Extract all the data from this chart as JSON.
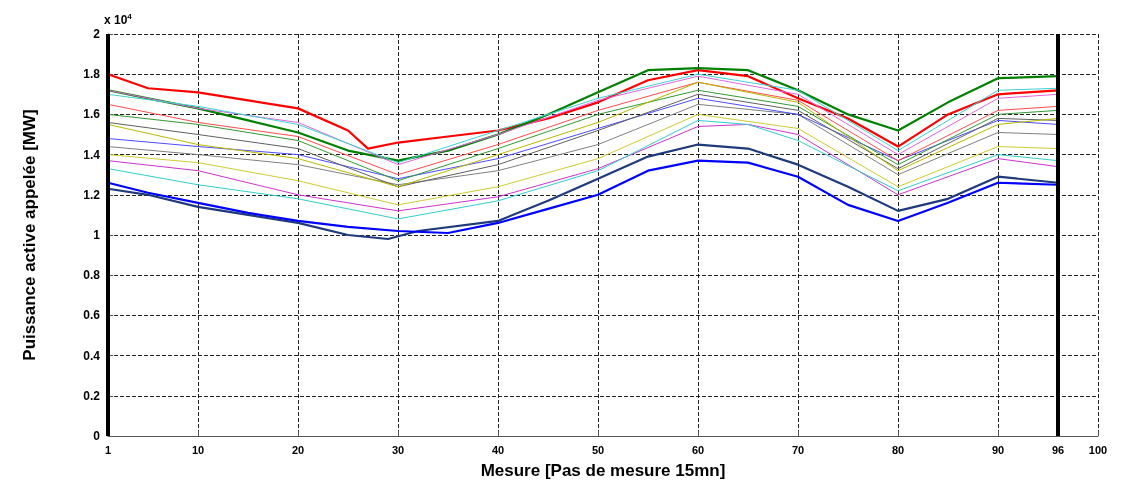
{
  "chart_data": {
    "type": "line",
    "xlabel": "Mesure [Pas de mesure 15mn]",
    "ylabel": "Puissance active appelée [MW]",
    "annotations": [
      "x 10$^{4}$"
    ],
    "xlim": [
      1,
      100
    ],
    "xticks": [
      1,
      10,
      20,
      30,
      40,
      50,
      60,
      70,
      80,
      90,
      96,
      100
    ],
    "ylim": [
      0,
      2
    ],
    "yticks": [
      0,
      0.2,
      0.4,
      0.6,
      0.8,
      1,
      1.2,
      1.4,
      1.6,
      1.8,
      2
    ],
    "grid": true,
    "line_style": "solid",
    "marker": "none",
    "ref_lines": [
      {
        "axis": "x",
        "value": 1,
        "color": "#000000"
      },
      {
        "axis": "x",
        "value": 96,
        "color": "#000000"
      }
    ],
    "series": [
      {
        "color": "#ff0000",
        "x": [
          1,
          5,
          10,
          15,
          20,
          25,
          27,
          30,
          35,
          40,
          45,
          50,
          55,
          60,
          65,
          70,
          75,
          80,
          85,
          90,
          96
        ],
        "values": [
          1.8,
          1.73,
          1.71,
          1.67,
          1.63,
          1.52,
          1.43,
          1.46,
          1.49,
          1.52,
          1.58,
          1.66,
          1.77,
          1.82,
          1.79,
          1.68,
          1.58,
          1.44,
          1.6,
          1.7,
          1.72
        ]
      },
      {
        "color": "#008000",
        "x": [
          1,
          5,
          10,
          15,
          20,
          25,
          30,
          35,
          40,
          45,
          50,
          55,
          60,
          65,
          70,
          75,
          80,
          85,
          90,
          96
        ],
        "values": [
          1.72,
          1.68,
          1.63,
          1.57,
          1.51,
          1.42,
          1.37,
          1.42,
          1.5,
          1.6,
          1.71,
          1.82,
          1.83,
          1.82,
          1.72,
          1.6,
          1.52,
          1.66,
          1.78,
          1.79
        ]
      },
      {
        "color": "#1f3a7a",
        "x": [
          1,
          5,
          10,
          15,
          20,
          25,
          29,
          32,
          40,
          45,
          50,
          55,
          60,
          65,
          70,
          75,
          80,
          85,
          90,
          96
        ],
        "values": [
          1.23,
          1.2,
          1.14,
          1.1,
          1.06,
          1.0,
          0.98,
          1.02,
          1.07,
          1.17,
          1.28,
          1.39,
          1.45,
          1.43,
          1.35,
          1.24,
          1.12,
          1.18,
          1.29,
          1.26
        ]
      },
      {
        "color": "#0000ff",
        "x": [
          1,
          5,
          10,
          15,
          20,
          25,
          30,
          35,
          40,
          45,
          50,
          55,
          60,
          65,
          70,
          75,
          80,
          85,
          90,
          96
        ],
        "values": [
          1.26,
          1.21,
          1.16,
          1.11,
          1.07,
          1.04,
          1.02,
          1.01,
          1.06,
          1.13,
          1.2,
          1.32,
          1.37,
          1.36,
          1.29,
          1.15,
          1.07,
          1.16,
          1.26,
          1.25
        ]
      },
      {
        "color": "#cc33cc",
        "x": [
          1,
          10,
          20,
          30,
          40,
          50,
          60,
          65,
          70,
          80,
          90,
          96
        ],
        "values": [
          1.37,
          1.32,
          1.2,
          1.12,
          1.19,
          1.33,
          1.54,
          1.55,
          1.5,
          1.2,
          1.38,
          1.34
        ]
      },
      {
        "color": "#33cccc",
        "x": [
          1,
          10,
          20,
          30,
          40,
          50,
          60,
          65,
          70,
          80,
          90,
          96
        ],
        "values": [
          1.33,
          1.25,
          1.18,
          1.08,
          1.17,
          1.32,
          1.57,
          1.55,
          1.47,
          1.22,
          1.4,
          1.37
        ]
      },
      {
        "color": "#cccc33",
        "x": [
          1,
          10,
          20,
          30,
          40,
          50,
          60,
          70,
          80,
          90,
          96
        ],
        "values": [
          1.4,
          1.36,
          1.27,
          1.15,
          1.24,
          1.38,
          1.6,
          1.53,
          1.24,
          1.44,
          1.43
        ]
      },
      {
        "color": "#808080",
        "x": [
          1,
          10,
          20,
          30,
          40,
          50,
          60,
          70,
          80,
          90,
          96
        ],
        "values": [
          1.44,
          1.4,
          1.35,
          1.25,
          1.32,
          1.45,
          1.65,
          1.6,
          1.3,
          1.51,
          1.5
        ]
      },
      {
        "color": "#4d4dff",
        "x": [
          1,
          10,
          20,
          30,
          40,
          50,
          60,
          70,
          80,
          90,
          96
        ],
        "values": [
          1.48,
          1.44,
          1.4,
          1.28,
          1.38,
          1.53,
          1.68,
          1.6,
          1.37,
          1.57,
          1.55
        ]
      },
      {
        "color": "#ff4d4d",
        "x": [
          1,
          10,
          20,
          30,
          40,
          50,
          60,
          70,
          80,
          90,
          96
        ],
        "values": [
          1.65,
          1.56,
          1.49,
          1.3,
          1.45,
          1.62,
          1.76,
          1.67,
          1.37,
          1.62,
          1.64
        ]
      },
      {
        "color": "#339933",
        "x": [
          1,
          10,
          20,
          30,
          40,
          50,
          60,
          70,
          80,
          90,
          96
        ],
        "values": [
          1.6,
          1.55,
          1.47,
          1.27,
          1.43,
          1.6,
          1.72,
          1.64,
          1.35,
          1.6,
          1.62
        ]
      },
      {
        "color": "#e066e0",
        "x": [
          1,
          10,
          20,
          30,
          40,
          50,
          60,
          70,
          80,
          90,
          96
        ],
        "values": [
          1.72,
          1.63,
          1.56,
          1.35,
          1.5,
          1.67,
          1.79,
          1.7,
          1.4,
          1.68,
          1.7
        ]
      },
      {
        "color": "#40d0d0",
        "x": [
          1,
          10,
          20,
          30,
          40,
          50,
          60,
          70,
          80,
          90,
          96
        ],
        "values": [
          1.7,
          1.64,
          1.55,
          1.36,
          1.52,
          1.68,
          1.8,
          1.72,
          1.42,
          1.72,
          1.73
        ]
      },
      {
        "color": "#606060",
        "x": [
          1,
          10,
          20,
          30,
          40,
          50,
          60,
          70,
          80,
          90,
          96
        ],
        "values": [
          1.56,
          1.5,
          1.43,
          1.24,
          1.35,
          1.52,
          1.7,
          1.62,
          1.33,
          1.58,
          1.57
        ]
      },
      {
        "color": "#b8b800",
        "x": [
          1,
          10,
          20,
          30,
          40,
          50,
          60,
          70,
          80,
          90,
          96
        ],
        "values": [
          1.55,
          1.45,
          1.38,
          1.24,
          1.4,
          1.56,
          1.76,
          1.66,
          1.32,
          1.55,
          1.58
        ]
      }
    ]
  }
}
